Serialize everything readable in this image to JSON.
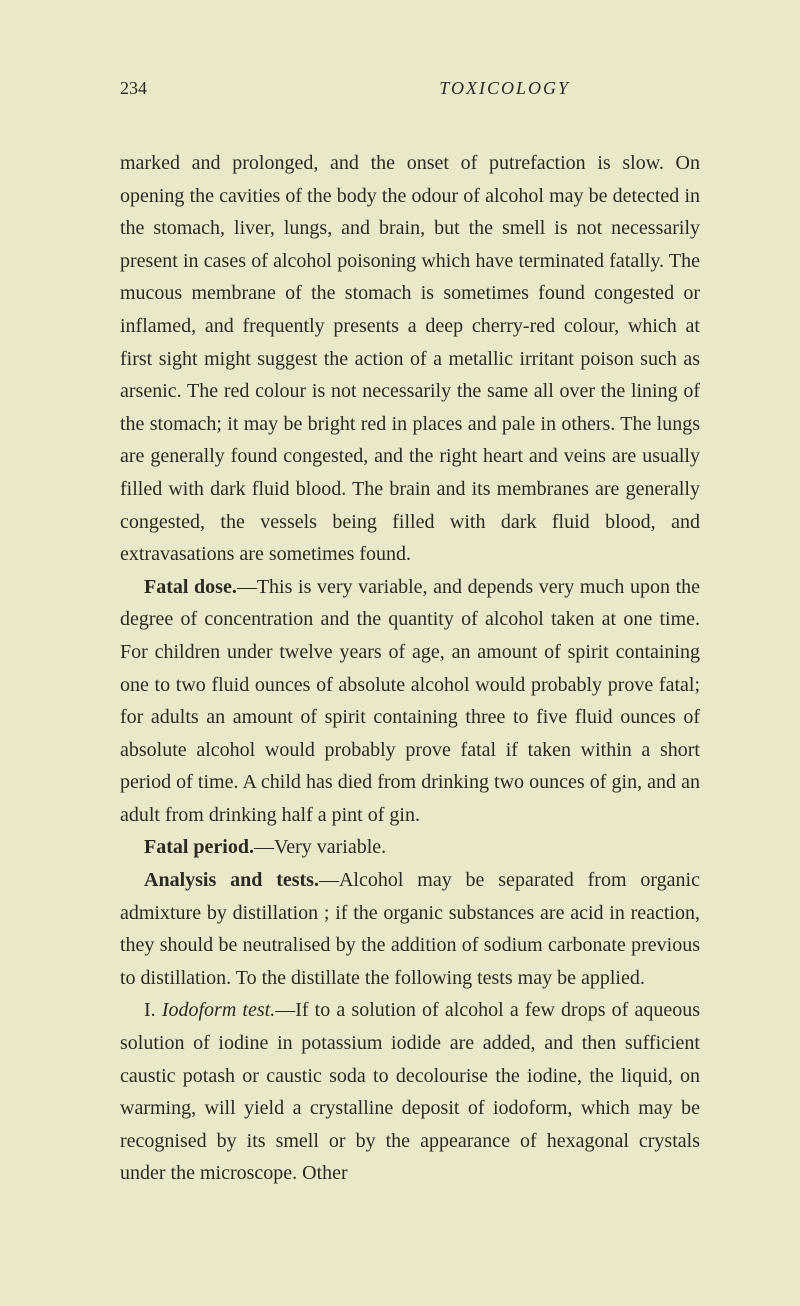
{
  "header": {
    "page_number": "234",
    "running_head": "TOXICOLOGY"
  },
  "paragraphs": {
    "p1": "marked and prolonged, and the onset of putrefaction is slow. On opening the cavities of the body the odour of alcohol may be detected in the stomach, liver, lungs, and brain, but the smell is not necessarily present in cases of alcohol poison­ing which have terminated fatally. The mucous membrane of the stomach is sometimes found congested or inflamed, and frequently presents a deep cherry-red colour, which at first sight might suggest the action of a metallic irritant poison such as arsenic. The red colour is not necessarily the same all over the lining of the stomach; it may be bright red in places and pale in others. The lungs are generally found congested, and the right heart and veins are usually filled with dark fluid blood. The brain and its membranes are generally congested, the vessels being filled with dark fluid blood, and extravasations are sometimes found.",
    "p2_lead": "Fatal dose.",
    "p2_rest": "—This is very variable, and depends very much upon the degree of concentration and the quantity of alcohol taken at one time. For children under twelve years of age, an amount of spirit containing one to two fluid ounces of absolute alcohol would probably prove fatal; for adults an amount of spirit containing three to five fluid ounces of absolute alcohol would probably prove fatal if taken within a short period of time. A child has died from drinking two ounces of gin, and an adult from drinking half a pint of gin.",
    "p3_lead": "Fatal period.",
    "p3_rest": "—Very variable.",
    "p4_lead": "Analysis and tests.",
    "p4_rest": "—Alcohol may be separated from organic admixture by distillation ; if the organic substances are acid in reaction, they should be neutralised by the addition of sodium carbonate previous to distillation. To the distillate the follow­ing tests may be applied.",
    "p5_lead": "I. ",
    "p5_italic": "Iodoform test.",
    "p5_rest": "—If to a solution of alcohol a few drops of aqueous solution of iodine in potassium iodide are added, and then sufficient caustic potash or caustic soda to decolourise the iodine, the liquid, on warming, will yield a crystalline deposit of iodoform, which may be recognised by its smell or by the appearance of hexagonal crystals under the microscope. Other"
  }
}
